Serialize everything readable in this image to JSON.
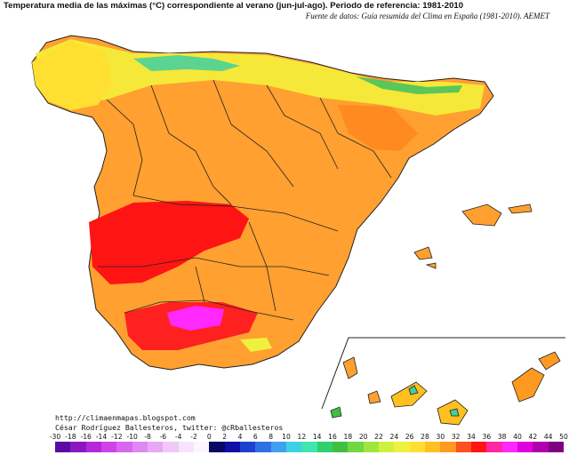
{
  "title": "Temperatura media de las máximas (°C) correspondiente al verano (jun-jul-ago). Periodo de referencia: 1981-2010",
  "source": "Fuente de datos: Guía resumida del Clima en España (1981-2010). AEMET",
  "credits": {
    "blog": "http://climaenmapas.blogspot.com",
    "author": "César Rodríguez Ballesteros, twitter: @cRballesteros"
  },
  "legend": {
    "unit": "°C",
    "ticks": [
      "-30",
      "-18",
      "-16",
      "-14",
      "-12",
      "-10",
      "-8",
      "-6",
      "-4",
      "-2",
      "0",
      "2",
      "4",
      "6",
      "8",
      "10",
      "12",
      "14",
      "16",
      "18",
      "20",
      "22",
      "24",
      "26",
      "28",
      "30",
      "32",
      "34",
      "36",
      "38",
      "40",
      "42",
      "44",
      "50"
    ],
    "colors": [
      "#5a0aa0",
      "#8a18c0",
      "#b428d8",
      "#cc44e6",
      "#d866ee",
      "#e088f2",
      "#e8a8f6",
      "#f0c8fa",
      "#f7e4fc",
      "#fbf6fd",
      "#0a0a64",
      "#1010a8",
      "#2040d0",
      "#3070e6",
      "#40a0f0",
      "#40d0e6",
      "#40e6b0",
      "#30d070",
      "#40c040",
      "#70d840",
      "#a0e640",
      "#d0f040",
      "#f0f040",
      "#ffe030",
      "#ffc020",
      "#ff9a20",
      "#ff5020",
      "#ff1414",
      "#ff28a0",
      "#ff28ff",
      "#e000e0",
      "#b000b0",
      "#800080"
    ]
  },
  "insets": {
    "islands": "Canarias"
  },
  "colors": {
    "interior_hot": "#ff9a20",
    "south_hottest": "#ff1414",
    "extreme": "#ff28ff",
    "north_cool": "#f0f040",
    "mountain": "#40e6b0",
    "border": "#222222"
  }
}
